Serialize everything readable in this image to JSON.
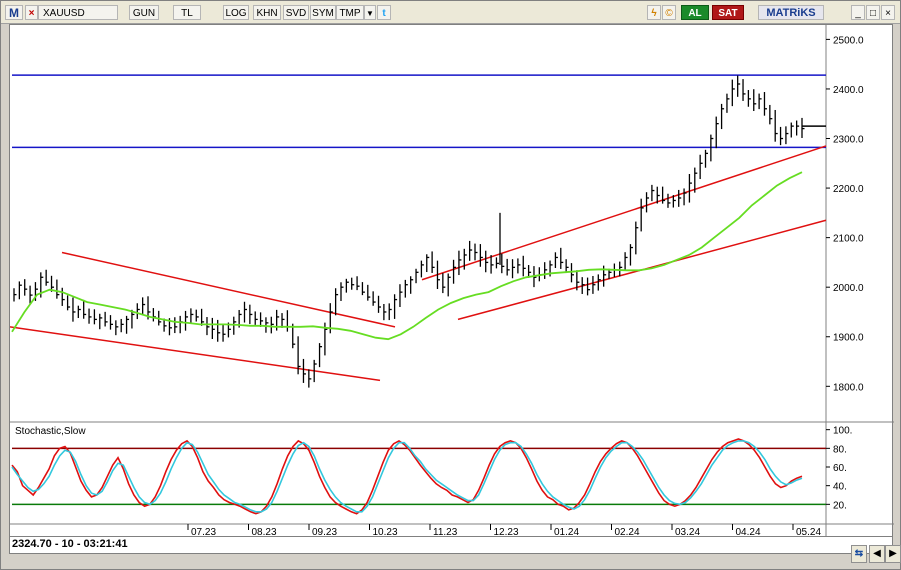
{
  "toolbar": {
    "logo": "M",
    "close": "×",
    "symbol": "XAUUSD",
    "period": "GUN",
    "currency": "TL",
    "log": "LOG",
    "khn": "KHN",
    "svd": "SVD",
    "sym": "SYM",
    "tmp": "TMP",
    "dropdown": "▼",
    "twitter": "t",
    "buy": "AL",
    "sell": "SAT",
    "brand": "MATRiKS",
    "minimize": "_",
    "maximize": "□",
    "close_window": "×"
  },
  "indicator": {
    "label": "Stochastic,Slow"
  },
  "readout": "2324.70 - 10 - 03:21:41",
  "colors": {
    "candle": "#000000",
    "channel": "#e01010",
    "hline": "#1515c8",
    "ma": "#66dd22",
    "stoch_k": "#e01010",
    "stoch_d": "#33c8dd",
    "stoch_ob": "#8b0000",
    "stoch_os": "#0a7a0a"
  },
  "chart_data": [
    {
      "type": "candlestick",
      "title": "XAUUSD",
      "x_ticks": [
        "07.23",
        "08.23",
        "09.23",
        "10.23",
        "11.23",
        "12.23",
        "01.24",
        "02.24",
        "03.24",
        "04.24",
        "05.24"
      ],
      "y_ticks": [
        1800,
        1900,
        2000,
        2100,
        2200,
        2300,
        2400,
        2500
      ],
      "ylim": [
        1730,
        2525
      ],
      "horizontal_lines": [
        2428,
        2282
      ],
      "last_price_marker": 2325,
      "series": [
        {
          "name": "price",
          "values": [
            1985,
            2004,
            1996,
            1984,
            1996,
            2020,
            2010,
            2000,
            1985,
            1975,
            1960,
            1950,
            1955,
            1945,
            1940,
            1935,
            1938,
            1930,
            1925,
            1920,
            1925,
            1935,
            1945,
            1955,
            1965,
            1950,
            1940,
            1930,
            1922,
            1918,
            1920,
            1930,
            1940,
            1945,
            1940,
            1930,
            1920,
            1915,
            1908,
            1905,
            1915,
            1930,
            1945,
            1955,
            1945,
            1935,
            1932,
            1928,
            1925,
            1940,
            1935,
            1920,
            1885,
            1840,
            1825,
            1815,
            1845,
            1880,
            1915,
            1950,
            1985,
            2000,
            2010,
            2005,
            2002,
            1990,
            1980,
            1970,
            1960,
            1950,
            1955,
            1975,
            1990,
            2005,
            2015,
            2030,
            2045,
            2060,
            2040,
            2015,
            2000,
            2020,
            2040,
            2055,
            2065,
            2075,
            2070,
            2060,
            2050,
            2045,
            2048,
            2042,
            2035,
            2040,
            2045,
            2038,
            2030,
            2020,
            2025,
            2035,
            2045,
            2060,
            2050,
            2040,
            2025,
            2010,
            2005,
            1995,
            2005,
            2015,
            2025,
            2030,
            2035,
            2040,
            2060,
            2080,
            2120,
            2160,
            2180,
            2195,
            2185,
            2175,
            2170,
            2175,
            2180,
            2190,
            2210,
            2230,
            2250,
            2270,
            2300,
            2330,
            2360,
            2380,
            2400,
            2410,
            2390,
            2380,
            2370,
            2380,
            2360,
            2340,
            2310,
            2300,
            2310,
            2325,
            2325,
            2320
          ]
        },
        {
          "name": "ma",
          "values": [
            1910,
            1950,
            1985,
            1995,
            1990,
            1980,
            1970,
            1965,
            1960,
            1955,
            1948,
            1940,
            1935,
            1930,
            1928,
            1925,
            1925,
            1925,
            1924,
            1922,
            1922,
            1920,
            1920,
            1920,
            1921,
            1918,
            1916,
            1912,
            1905,
            1898,
            1895,
            1905,
            1920,
            1938,
            1955,
            1968,
            1978,
            1985,
            1990,
            2002,
            2012,
            2020,
            2024,
            2028,
            2030,
            2032,
            2035,
            2036,
            2035,
            2034,
            2034,
            2038,
            2045,
            2055,
            2065,
            2080,
            2100,
            2120,
            2140,
            2165,
            2185,
            2205,
            2220,
            2232
          ]
        }
      ]
    },
    {
      "type": "line",
      "title": "Stochastic,Slow",
      "y_ticks": [
        20,
        40,
        60,
        80,
        100
      ],
      "ylim": [
        0,
        105
      ],
      "levels": [
        80,
        20
      ],
      "series": [
        {
          "name": "%K",
          "values": [
            62,
            55,
            40,
            35,
            30,
            38,
            48,
            58,
            72,
            80,
            82,
            75,
            60,
            45,
            35,
            28,
            30,
            38,
            50,
            62,
            70,
            58,
            42,
            30,
            22,
            18,
            20,
            28,
            40,
            55,
            68,
            78,
            85,
            88,
            82,
            70,
            55,
            45,
            38,
            30,
            25,
            22,
            20,
            18,
            15,
            12,
            10,
            12,
            18,
            28,
            42,
            58,
            72,
            82,
            88,
            85,
            78,
            65,
            50,
            38,
            28,
            22,
            18,
            15,
            12,
            10,
            14,
            22,
            35,
            50,
            65,
            78,
            85,
            88,
            84,
            78,
            70,
            62,
            55,
            48,
            42,
            38,
            35,
            30,
            28,
            25,
            22,
            25,
            35,
            48,
            62,
            74,
            82,
            86,
            88,
            86,
            80,
            70,
            58,
            45,
            35,
            28,
            25,
            20,
            18,
            14,
            16,
            22,
            30,
            42,
            55,
            66,
            74,
            80,
            85,
            88,
            86,
            80,
            72,
            62,
            52,
            42,
            32,
            24,
            20,
            18,
            20,
            24,
            30,
            38,
            48,
            58,
            68,
            76,
            82,
            86,
            88,
            90,
            88,
            84,
            78,
            70,
            60,
            50,
            42,
            38,
            40,
            45,
            48,
            50
          ]
        },
        {
          "name": "%D",
          "values": [
            60,
            52,
            45,
            38,
            34,
            36,
            42,
            50,
            62,
            72,
            78,
            76,
            66,
            52,
            40,
            32,
            30,
            34,
            44,
            56,
            64,
            62,
            50,
            38,
            28,
            22,
            20,
            24,
            32,
            44,
            58,
            70,
            80,
            86,
            84,
            76,
            64,
            52,
            44,
            36,
            30,
            26,
            22,
            20,
            17,
            14,
            12,
            12,
            15,
            22,
            34,
            48,
            62,
            74,
            83,
            86,
            82,
            72,
            58,
            46,
            36,
            28,
            22,
            18,
            15,
            12,
            12,
            18,
            28,
            42,
            56,
            70,
            80,
            86,
            86,
            80,
            72,
            66,
            58,
            52,
            46,
            42,
            38,
            34,
            30,
            27,
            24,
            24,
            30,
            42,
            55,
            68,
            78,
            84,
            86,
            86,
            82,
            74,
            64,
            52,
            42,
            34,
            28,
            24,
            20,
            17,
            15,
            18,
            25,
            35,
            48,
            60,
            70,
            77,
            82,
            86,
            86,
            82,
            76,
            68,
            58,
            48,
            38,
            30,
            24,
            21,
            20,
            22,
            27,
            34,
            42,
            52,
            62,
            70,
            78,
            83,
            86,
            88,
            88,
            86,
            82,
            76,
            68,
            58,
            50,
            44,
            41,
            43,
            46,
            48
          ]
        }
      ]
    }
  ]
}
